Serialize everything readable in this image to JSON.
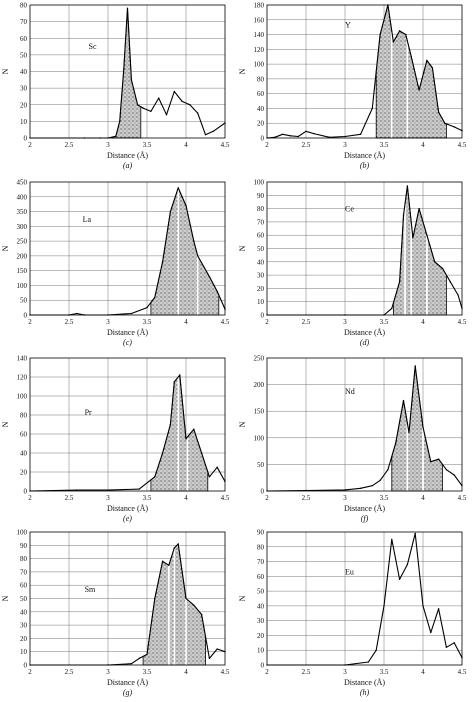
{
  "chart_data": [
    {
      "type": "line",
      "element": "Sc",
      "panel": "(a)",
      "xlabel": "Distance (Å)",
      "ylabel": "N",
      "xlim": [
        2,
        4.5
      ],
      "ylim": [
        0,
        80
      ],
      "xticks": [
        "2",
        "2.5",
        "3",
        "3.5",
        "4",
        "4.5"
      ],
      "yticks": [
        "0",
        "10",
        "20",
        "30",
        "40",
        "50",
        "60",
        "70",
        "80"
      ],
      "grid": true,
      "x": [
        2,
        2.7,
        2.9,
        3.0,
        3.1,
        3.15,
        3.2,
        3.25,
        3.3,
        3.38,
        3.45,
        3.55,
        3.65,
        3.75,
        3.85,
        3.95,
        4.05,
        4.15,
        4.25,
        4.35,
        4.5
      ],
      "y": [
        0,
        0,
        0,
        0,
        1,
        10,
        40,
        78,
        35,
        20,
        18,
        16,
        24,
        14,
        28,
        22,
        20,
        15,
        2,
        4,
        9
      ],
      "shaded_x": [
        3.05,
        3.42
      ],
      "dividers": []
    },
    {
      "type": "line",
      "element": "Y",
      "panel": "(b)",
      "xlabel": "Distance (Å)",
      "ylabel": "N",
      "xlim": [
        2,
        4.5
      ],
      "ylim": [
        0,
        180
      ],
      "xticks": [
        "2",
        "2.5",
        "3",
        "3.5",
        "4",
        "4.5"
      ],
      "yticks": [
        "0",
        "20",
        "40",
        "60",
        "80",
        "100",
        "120",
        "140",
        "160",
        "180"
      ],
      "grid": true,
      "x": [
        2,
        2.1,
        2.2,
        2.3,
        2.4,
        2.5,
        2.6,
        2.8,
        3.0,
        3.2,
        3.35,
        3.45,
        3.55,
        3.62,
        3.7,
        3.78,
        3.85,
        3.95,
        4.05,
        4.12,
        4.2,
        4.28,
        4.4,
        4.5
      ],
      "y": [
        0,
        1,
        5,
        3,
        2,
        9,
        6,
        1,
        2,
        5,
        40,
        140,
        180,
        130,
        145,
        140,
        110,
        65,
        105,
        95,
        35,
        20,
        15,
        10
      ],
      "shaded_x": [
        3.4,
        4.3
      ],
      "dividers": [
        3.6,
        3.8
      ]
    },
    {
      "type": "line",
      "element": "La",
      "panel": "(c)",
      "xlabel": "Distance (Å)",
      "ylabel": "N",
      "xlim": [
        2,
        4.5
      ],
      "ylim": [
        0,
        450
      ],
      "xticks": [
        "2",
        "2.5",
        "3",
        "3.5",
        "4",
        "4.5"
      ],
      "yticks": [
        "0",
        "50",
        "100",
        "150",
        "200",
        "250",
        "300",
        "350",
        "400",
        "450"
      ],
      "grid": true,
      "x": [
        2,
        2.5,
        2.6,
        2.7,
        3.0,
        3.3,
        3.5,
        3.6,
        3.7,
        3.8,
        3.9,
        4.0,
        4.1,
        4.15,
        4.3,
        4.4,
        4.5
      ],
      "y": [
        0,
        0,
        5,
        0,
        0,
        5,
        25,
        60,
        180,
        350,
        430,
        370,
        250,
        200,
        130,
        80,
        20
      ],
      "shaded_x": [
        3.55,
        4.42
      ],
      "dividers": [
        3.9,
        4.15
      ]
    },
    {
      "type": "line",
      "element": "Ce",
      "panel": "(d)",
      "xlabel": "Distance (Å)",
      "ylabel": "N",
      "xlim": [
        2,
        4.5
      ],
      "ylim": [
        0,
        100
      ],
      "xticks": [
        "2",
        "2.5",
        "3",
        "3.5",
        "4",
        "4.5"
      ],
      "yticks": [
        "0",
        "10",
        "20",
        "30",
        "40",
        "50",
        "60",
        "70",
        "80",
        "90",
        "100"
      ],
      "grid": true,
      "x": [
        2,
        3.0,
        3.5,
        3.6,
        3.7,
        3.75,
        3.8,
        3.87,
        3.95,
        4.05,
        4.15,
        4.25,
        4.35,
        4.45,
        4.5
      ],
      "y": [
        0,
        0,
        0,
        5,
        25,
        75,
        97,
        58,
        80,
        60,
        40,
        35,
        25,
        15,
        5
      ],
      "shaded_x": [
        3.62,
        4.3
      ],
      "dividers": [
        3.77,
        3.85,
        4.05
      ]
    },
    {
      "type": "line",
      "element": "Pr",
      "panel": "(e)",
      "xlabel": "Distance (Å)",
      "ylabel": "N",
      "xlim": [
        2,
        4.5
      ],
      "ylim": [
        0,
        140
      ],
      "xticks": [
        "2",
        "2.5",
        "3",
        "3.5",
        "4",
        "4.5"
      ],
      "yticks": [
        "0",
        "20",
        "40",
        "60",
        "80",
        "100",
        "120",
        "140"
      ],
      "grid": true,
      "x": [
        2,
        2.6,
        3.0,
        3.4,
        3.6,
        3.7,
        3.8,
        3.85,
        3.92,
        4.0,
        4.05,
        4.1,
        4.2,
        4.3,
        4.4,
        4.5
      ],
      "y": [
        0,
        1,
        1,
        2,
        15,
        40,
        70,
        115,
        122,
        55,
        60,
        65,
        40,
        15,
        25,
        10
      ],
      "shaded_x": [
        3.55,
        4.28
      ],
      "dividers": [
        3.9,
        4.02
      ]
    },
    {
      "type": "line",
      "element": "Nd",
      "panel": "(f)",
      "xlabel": "Distance (Å)",
      "ylabel": "N",
      "xlim": [
        2,
        4.5
      ],
      "ylim": [
        0,
        250
      ],
      "xticks": [
        "2",
        "2.5",
        "3",
        "3.5",
        "4",
        "4.5"
      ],
      "yticks": [
        "0",
        "50",
        "100",
        "150",
        "200",
        "250"
      ],
      "grid": true,
      "x": [
        2,
        2.5,
        3.0,
        3.2,
        3.35,
        3.45,
        3.55,
        3.65,
        3.75,
        3.82,
        3.9,
        4.0,
        4.1,
        4.2,
        4.3,
        4.4,
        4.5
      ],
      "y": [
        0,
        1,
        2,
        5,
        10,
        20,
        40,
        90,
        170,
        110,
        235,
        120,
        55,
        60,
        40,
        30,
        10
      ],
      "shaded_x": [
        3.6,
        4.25
      ],
      "dividers": [
        3.8,
        4.0
      ]
    },
    {
      "type": "line",
      "element": "Sm",
      "panel": "(g)",
      "xlabel": "Distance (Å)",
      "ylabel": "N",
      "xlim": [
        2,
        4.5
      ],
      "ylim": [
        0,
        100
      ],
      "xticks": [
        "2",
        "2.5",
        "3",
        "3.5",
        "4",
        "4.5"
      ],
      "yticks": [
        "0",
        "10",
        "20",
        "30",
        "40",
        "50",
        "60",
        "70",
        "80",
        "90",
        "100"
      ],
      "grid": true,
      "x": [
        2,
        3.0,
        3.3,
        3.4,
        3.5,
        3.6,
        3.7,
        3.78,
        3.85,
        3.9,
        4.0,
        4.1,
        4.2,
        4.3,
        4.4,
        4.5
      ],
      "y": [
        0,
        0,
        1,
        5,
        8,
        50,
        78,
        75,
        88,
        91,
        50,
        45,
        38,
        5,
        12,
        10
      ],
      "shaded_x": [
        3.45,
        4.25
      ],
      "dividers": [
        3.78,
        3.85,
        4.0
      ]
    },
    {
      "type": "line",
      "element": "Eu",
      "panel": "(h)",
      "xlabel": "Distance (Å)",
      "ylabel": "N",
      "xlim": [
        2,
        4.5
      ],
      "ylim": [
        0,
        90
      ],
      "xticks": [
        "2",
        "2.5",
        "3",
        "3.5",
        "4",
        "4.5"
      ],
      "yticks": [
        "0",
        "10",
        "20",
        "30",
        "40",
        "50",
        "60",
        "70",
        "80",
        "90"
      ],
      "grid": true,
      "x": [
        2,
        3.0,
        3.3,
        3.4,
        3.5,
        3.6,
        3.7,
        3.8,
        3.9,
        4.0,
        4.1,
        4.2,
        4.3,
        4.4,
        4.5
      ],
      "y": [
        0,
        0,
        2,
        10,
        40,
        85,
        58,
        68,
        89,
        40,
        22,
        38,
        12,
        15,
        5
      ],
      "shaded_x": [],
      "dividers": []
    }
  ]
}
